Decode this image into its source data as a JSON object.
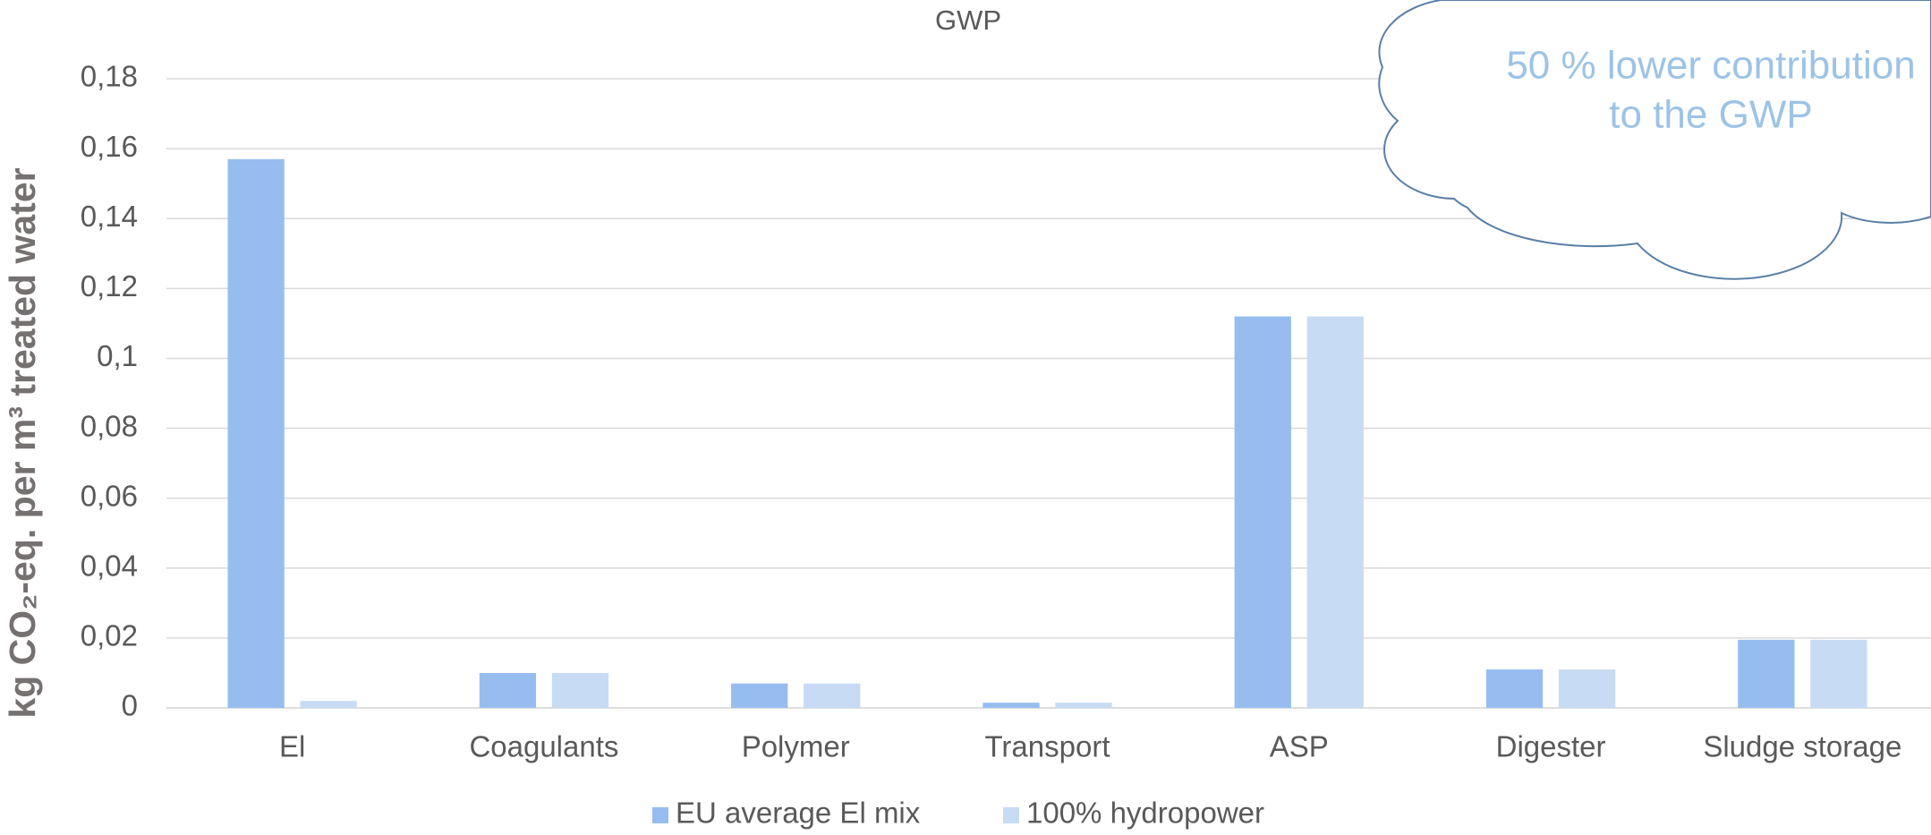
{
  "chart_data": {
    "type": "bar",
    "title": "GWP",
    "y_label": "kg CO₂-eq. per m³ treated water",
    "categories": [
      "El",
      "Coagulants",
      "Polymer",
      "Transport",
      "ASP",
      "Digester",
      "Sludge storage"
    ],
    "series": [
      {
        "name": "EU average El mix",
        "color": "#97bdf0",
        "values": [
          0.157,
          0.01,
          0.007,
          0.0015,
          0.112,
          0.011,
          0.0195
        ]
      },
      {
        "name": "100% hydropower",
        "color": "#c8dbf5",
        "values": [
          0.002,
          0.01,
          0.007,
          0.0015,
          0.112,
          0.011,
          0.0195
        ]
      }
    ],
    "ylim": [
      0,
      0.18
    ],
    "yticks": [
      0,
      {
        "value": 0.02,
        "label": "0,02"
      },
      {
        "value": 0.04,
        "label": "0,04"
      },
      {
        "value": 0.06,
        "label": "0,06"
      },
      {
        "value": 0.08,
        "label": "0,08"
      },
      {
        "value": 0.1,
        "label": "0,1"
      },
      {
        "value": 0.12,
        "label": "0,12"
      },
      {
        "value": 0.14,
        "label": "0,14"
      },
      {
        "value": 0.16,
        "label": "0,16"
      },
      {
        "value": 0.18,
        "label": "0,18"
      }
    ],
    "grid": true,
    "annotation": [
      "50 % lower contribution",
      "to the GWP"
    ]
  }
}
